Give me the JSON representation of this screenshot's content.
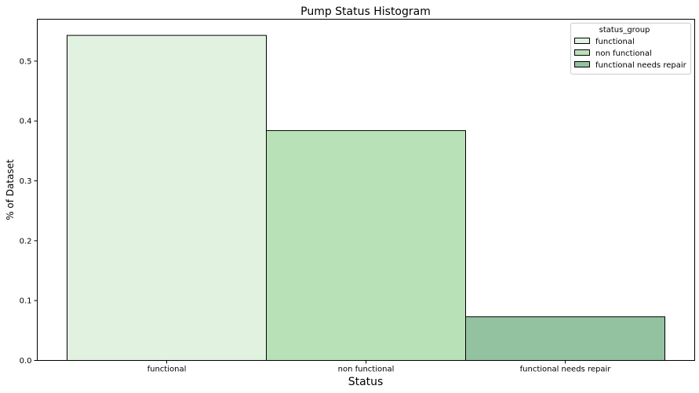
{
  "chart_data": {
    "type": "bar",
    "title": "Pump Status Histogram",
    "xlabel": "Status",
    "ylabel": "% of Dataset",
    "categories": [
      "functional",
      "non functional",
      "functional needs repair"
    ],
    "values": [
      0.543,
      0.384,
      0.073
    ],
    "colors": [
      "#e1f2e0",
      "#b9e1b8",
      "#92c29f"
    ],
    "ylim": [
      0,
      0.57
    ],
    "yticks": [
      0.0,
      0.1,
      0.2,
      0.3,
      0.4,
      0.5
    ],
    "ytick_labels": [
      "0.0",
      "0.1",
      "0.2",
      "0.3",
      "0.4",
      "0.5"
    ],
    "grid": false,
    "legend": {
      "title": "status_group",
      "placement": "top-right",
      "entries": [
        "functional",
        "non functional",
        "functional needs repair"
      ]
    }
  }
}
